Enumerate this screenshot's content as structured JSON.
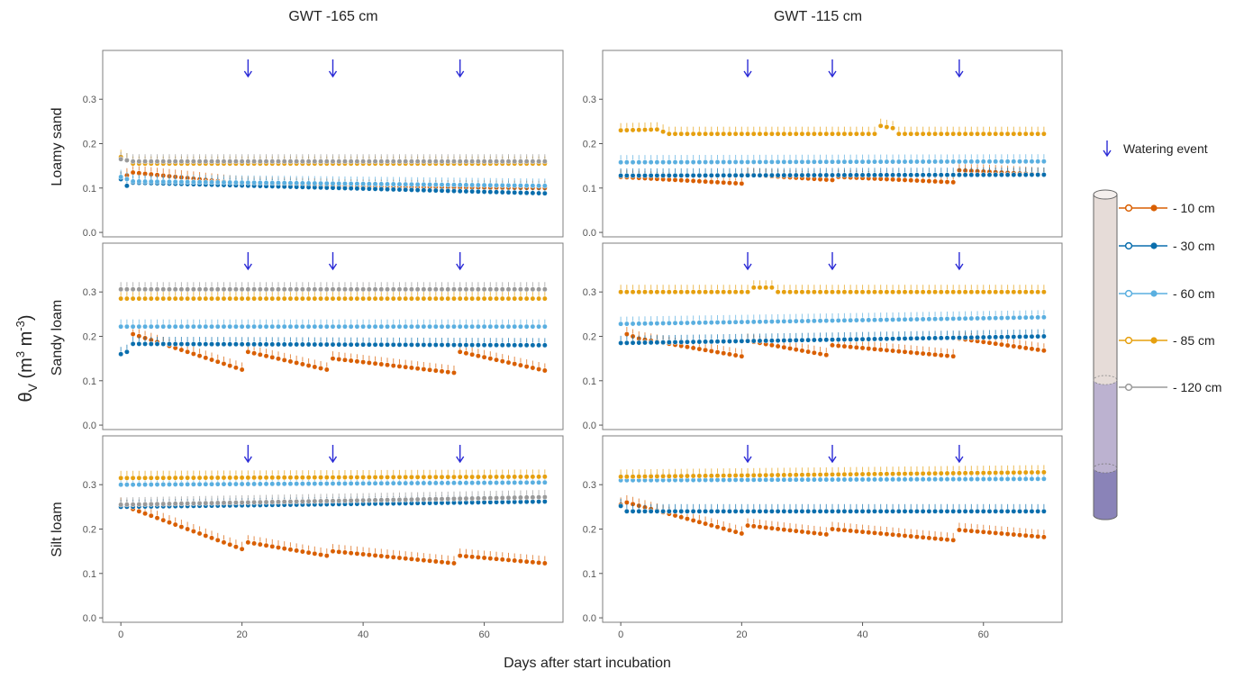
{
  "figure": {
    "col_titles": [
      "GWT -165 cm",
      "GWT -115 cm"
    ],
    "row_labels": [
      "Loamy sand",
      "Sandy loam",
      "Silt loam"
    ],
    "ylabel_main": "θ",
    "ylabel_sub": "V",
    "ylabel_unit1": " (m",
    "ylabel_sup1": "3",
    "ylabel_unit2": " m",
    "ylabel_sup2": "-3",
    "ylabel_unit3": ")",
    "xlabel": "Days after start incubation",
    "legend": {
      "watering_label": "Watering event",
      "depths": [
        {
          "label": "- 10 cm",
          "color": "#d95f02"
        },
        {
          "label": "- 30 cm",
          "color": "#0a6ead"
        },
        {
          "label": "- 60 cm",
          "color": "#5aafe0"
        },
        {
          "label": "- 85 cm",
          "color": "#e6a00f"
        },
        {
          "label": "- 120 cm",
          "color": "#9a9a9a"
        }
      ]
    },
    "colors": {
      "arrow": "#2b2bd6",
      "panel_border": "#7f7f7f"
    }
  },
  "chart_data": {
    "type": "scatter",
    "xlabel": "Days after start incubation",
    "ylabel": "θV (m3 m-3)",
    "xlim": [
      -3,
      73
    ],
    "ylim": [
      -0.01,
      0.41
    ],
    "x_ticks": [
      0,
      20,
      40,
      60
    ],
    "y_ticks": [
      0.0,
      0.1,
      0.2,
      0.3
    ],
    "x_tick_labels": [
      "0",
      "20",
      "40",
      "60"
    ],
    "y_tick_labels": [
      "0.0",
      "0.1",
      "0.2",
      "0.3"
    ],
    "watering_days": [
      21,
      35,
      56
    ],
    "panels": [
      {
        "row": "Loamy sand",
        "col": "GWT -165 cm",
        "series": [
          {
            "name": "- 10 cm",
            "segments": [
              [
                0,
                0.122,
                2,
                0.135
              ],
              [
                20,
                0.11
              ],
              [
                40,
                0.103
              ],
              [
                70,
                0.1
              ]
            ]
          },
          {
            "name": "- 30 cm",
            "segments": [
              [
                0,
                0.12,
                1,
                0.105
              ],
              [
                2,
                0.112
              ],
              [
                70,
                0.088
              ]
            ]
          },
          {
            "name": "- 60 cm",
            "segments": [
              [
                0,
                0.125
              ],
              [
                2,
                0.115
              ],
              [
                70,
                0.105
              ]
            ]
          },
          {
            "name": "- 85 cm",
            "segments": [
              [
                0,
                0.17
              ],
              [
                2,
                0.155
              ],
              [
                70,
                0.155
              ]
            ]
          },
          {
            "name": "- 120 cm",
            "segments": [
              [
                0,
                0.165
              ],
              [
                2,
                0.16
              ],
              [
                70,
                0.16
              ]
            ]
          }
        ]
      },
      {
        "row": "Loamy sand",
        "col": "GWT -115 cm",
        "series": [
          {
            "name": "- 10 cm",
            "segments": [
              [
                0,
                0.125
              ],
              [
                20,
                0.11
              ],
              [
                21,
                0.13
              ],
              [
                35,
                0.118
              ],
              [
                36,
                0.125
              ],
              [
                55,
                0.113
              ],
              [
                56,
                0.14
              ],
              [
                70,
                0.13
              ]
            ]
          },
          {
            "name": "- 30 cm",
            "segments": [
              [
                0,
                0.128
              ],
              [
                70,
                0.13
              ]
            ]
          },
          {
            "name": "- 60 cm",
            "segments": [
              [
                0,
                0.158
              ],
              [
                70,
                0.16
              ]
            ]
          },
          {
            "name": "- 85 cm",
            "segments": [
              [
                0,
                0.23
              ],
              [
                6,
                0.232
              ],
              [
                8,
                0.222
              ],
              [
                42,
                0.222
              ],
              [
                43,
                0.24
              ],
              [
                45,
                0.235
              ],
              [
                46,
                0.222
              ],
              [
                70,
                0.222
              ]
            ]
          }
        ]
      },
      {
        "row": "Sandy loam",
        "col": "GWT -165 cm",
        "series": [
          {
            "name": "- 10 cm",
            "segments": [
              [
                2,
                0.205
              ],
              [
                20,
                0.125
              ],
              [
                21,
                0.165
              ],
              [
                34,
                0.125
              ],
              [
                35,
                0.15
              ],
              [
                55,
                0.118
              ],
              [
                56,
                0.165
              ],
              [
                70,
                0.123
              ]
            ]
          },
          {
            "name": "- 30 cm",
            "segments": [
              [
                0,
                0.16
              ],
              [
                1,
                0.165
              ],
              [
                2,
                0.183
              ],
              [
                70,
                0.18
              ]
            ]
          },
          {
            "name": "- 60 cm",
            "segments": [
              [
                0,
                0.222
              ],
              [
                70,
                0.222
              ]
            ]
          },
          {
            "name": "- 85 cm",
            "segments": [
              [
                0,
                0.285
              ],
              [
                70,
                0.285
              ]
            ]
          },
          {
            "name": "- 120 cm",
            "segments": [
              [
                0,
                0.306
              ],
              [
                70,
                0.306
              ]
            ]
          }
        ]
      },
      {
        "row": "Sandy loam",
        "col": "GWT -115 cm",
        "series": [
          {
            "name": "- 10 cm",
            "segments": [
              [
                1,
                0.205
              ],
              [
                3,
                0.195
              ],
              [
                20,
                0.155
              ],
              [
                21,
                0.19
              ],
              [
                34,
                0.158
              ],
              [
                35,
                0.18
              ],
              [
                55,
                0.155
              ],
              [
                56,
                0.195
              ],
              [
                70,
                0.168
              ]
            ]
          },
          {
            "name": "- 30 cm",
            "segments": [
              [
                0,
                0.185
              ],
              [
                70,
                0.2
              ]
            ]
          },
          {
            "name": "- 60 cm",
            "segments": [
              [
                0,
                0.228
              ],
              [
                70,
                0.243
              ]
            ]
          },
          {
            "name": "- 85 cm",
            "segments": [
              [
                0,
                0.3
              ],
              [
                21,
                0.3
              ],
              [
                22,
                0.31
              ],
              [
                25,
                0.31
              ],
              [
                26,
                0.3
              ],
              [
                70,
                0.3
              ]
            ]
          }
        ]
      },
      {
        "row": "Silt loam",
        "col": "GWT -165 cm",
        "series": [
          {
            "name": "- 10 cm",
            "segments": [
              [
                0,
                0.255
              ],
              [
                20,
                0.155
              ],
              [
                21,
                0.17
              ],
              [
                34,
                0.14
              ],
              [
                35,
                0.15
              ],
              [
                55,
                0.123
              ],
              [
                56,
                0.14
              ],
              [
                70,
                0.123
              ]
            ]
          },
          {
            "name": "- 30 cm",
            "segments": [
              [
                0,
                0.25
              ],
              [
                70,
                0.262
              ]
            ]
          },
          {
            "name": "- 60 cm",
            "segments": [
              [
                0,
                0.3
              ],
              [
                70,
                0.305
              ]
            ]
          },
          {
            "name": "- 85 cm",
            "segments": [
              [
                0,
                0.315
              ],
              [
                70,
                0.318
              ]
            ]
          },
          {
            "name": "- 120 cm",
            "segments": [
              [
                0,
                0.255
              ],
              [
                70,
                0.272
              ]
            ]
          }
        ]
      },
      {
        "row": "Silt loam",
        "col": "GWT -115 cm",
        "series": [
          {
            "name": "- 10 cm",
            "segments": [
              [
                0,
                0.255
              ],
              [
                1,
                0.26
              ],
              [
                20,
                0.19
              ],
              [
                21,
                0.208
              ],
              [
                34,
                0.188
              ],
              [
                35,
                0.2
              ],
              [
                55,
                0.175
              ],
              [
                56,
                0.198
              ],
              [
                70,
                0.182
              ]
            ]
          },
          {
            "name": "- 30 cm",
            "segments": [
              [
                0,
                0.252
              ],
              [
                1,
                0.24
              ],
              [
                70,
                0.24
              ]
            ]
          },
          {
            "name": "- 60 cm",
            "segments": [
              [
                0,
                0.31
              ],
              [
                70,
                0.313
              ]
            ]
          },
          {
            "name": "- 85 cm",
            "segments": [
              [
                0,
                0.318
              ],
              [
                70,
                0.328
              ]
            ]
          }
        ]
      }
    ]
  }
}
